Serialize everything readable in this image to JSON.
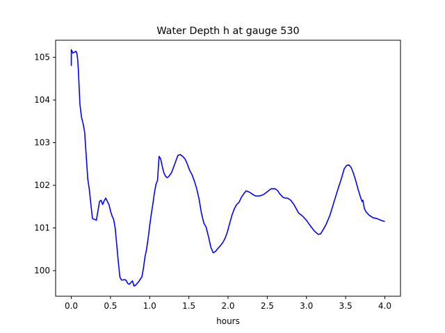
{
  "chart_data": {
    "type": "line",
    "title": "Water Depth h at gauge 530",
    "xlabel": "hours",
    "ylabel": "",
    "xlim": [
      -0.2,
      4.2
    ],
    "ylim": [
      99.4,
      105.4
    ],
    "xticks": [
      0.0,
      0.5,
      1.0,
      1.5,
      2.0,
      2.5,
      3.0,
      3.5,
      4.0
    ],
    "xtick_labels": [
      "0.0",
      "0.5",
      "1.0",
      "1.5",
      "2.0",
      "2.5",
      "3.0",
      "3.5",
      "4.0"
    ],
    "yticks": [
      100,
      101,
      102,
      103,
      104,
      105
    ],
    "ytick_labels": [
      "100",
      "101",
      "102",
      "103",
      "104",
      "105"
    ],
    "grid": false,
    "series": [
      {
        "color": "#0000ff",
        "x": [
          0.0,
          0.0,
          0.02,
          0.04,
          0.06,
          0.07,
          0.08,
          0.09,
          0.1,
          0.11,
          0.13,
          0.15,
          0.17,
          0.19,
          0.21,
          0.23,
          0.25,
          0.27,
          0.3,
          0.32,
          0.34,
          0.36,
          0.38,
          0.4,
          0.42,
          0.44,
          0.46,
          0.48,
          0.5,
          0.52,
          0.54,
          0.56,
          0.58,
          0.6,
          0.62,
          0.64,
          0.66,
          0.68,
          0.7,
          0.72,
          0.74,
          0.76,
          0.78,
          0.8,
          0.82,
          0.84,
          0.86,
          0.88,
          0.9,
          0.92,
          0.94,
          0.96,
          0.98,
          1.0,
          1.02,
          1.04,
          1.06,
          1.08,
          1.1,
          1.12,
          1.14,
          1.16,
          1.18,
          1.2,
          1.22,
          1.24,
          1.26,
          1.28,
          1.3,
          1.33,
          1.36,
          1.39,
          1.42,
          1.45,
          1.48,
          1.51,
          1.54,
          1.57,
          1.6,
          1.63,
          1.66,
          1.69,
          1.72,
          1.75,
          1.78,
          1.81,
          1.84,
          1.87,
          1.9,
          1.93,
          1.96,
          1.99,
          2.02,
          2.05,
          2.08,
          2.11,
          2.14,
          2.17,
          2.2,
          2.23,
          2.26,
          2.29,
          2.32,
          2.35,
          2.4,
          2.45,
          2.5,
          2.55,
          2.6,
          2.63,
          2.66,
          2.7,
          2.73,
          2.76,
          2.8,
          2.84,
          2.87,
          2.9,
          2.95,
          3.0,
          3.05,
          3.1,
          3.15,
          3.18,
          3.21,
          3.25,
          3.3,
          3.35,
          3.4,
          3.45,
          3.48,
          3.51,
          3.54,
          3.57,
          3.6,
          3.63,
          3.66,
          3.69,
          3.71,
          3.72,
          3.73,
          3.74,
          3.76,
          3.8,
          3.85,
          3.9,
          3.95,
          4.0
        ],
        "values": [
          104.8,
          105.18,
          105.1,
          105.12,
          105.14,
          105.1,
          104.98,
          104.7,
          104.3,
          103.9,
          103.6,
          103.45,
          103.25,
          102.7,
          102.15,
          101.9,
          101.55,
          101.22,
          101.2,
          101.18,
          101.4,
          101.62,
          101.65,
          101.55,
          101.64,
          101.7,
          101.62,
          101.55,
          101.4,
          101.28,
          101.2,
          101.0,
          100.6,
          100.2,
          99.85,
          99.78,
          99.78,
          99.79,
          99.77,
          99.7,
          99.68,
          99.72,
          99.76,
          99.64,
          99.66,
          99.7,
          99.74,
          99.8,
          99.85,
          100.05,
          100.32,
          100.5,
          100.75,
          101.05,
          101.32,
          101.55,
          101.82,
          102.02,
          102.12,
          102.68,
          102.62,
          102.45,
          102.3,
          102.22,
          102.18,
          102.2,
          102.25,
          102.3,
          102.4,
          102.55,
          102.7,
          102.72,
          102.68,
          102.62,
          102.5,
          102.35,
          102.25,
          102.1,
          101.92,
          101.68,
          101.35,
          101.12,
          101.02,
          100.8,
          100.55,
          100.42,
          100.45,
          100.52,
          100.58,
          100.65,
          100.75,
          100.9,
          101.1,
          101.3,
          101.45,
          101.55,
          101.6,
          101.72,
          101.8,
          101.87,
          101.85,
          101.82,
          101.78,
          101.75,
          101.75,
          101.78,
          101.85,
          101.92,
          101.92,
          101.88,
          101.8,
          101.72,
          101.7,
          101.7,
          101.65,
          101.55,
          101.45,
          101.35,
          101.28,
          101.18,
          101.05,
          100.93,
          100.85,
          100.86,
          100.95,
          101.08,
          101.3,
          101.6,
          101.9,
          102.18,
          102.38,
          102.46,
          102.48,
          102.42,
          102.28,
          102.1,
          101.9,
          101.72,
          101.62,
          101.65,
          101.55,
          101.45,
          101.38,
          101.3,
          101.24,
          101.22,
          101.18,
          101.15
        ]
      }
    ]
  }
}
